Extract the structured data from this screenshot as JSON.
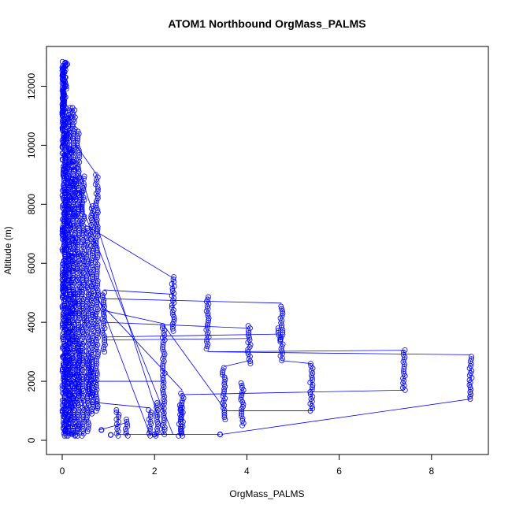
{
  "chart_data": {
    "type": "scatter",
    "title": "ATOM1 Northbound OrgMass_PALMS",
    "xlabel": "OrgMass_PALMS",
    "ylabel": "Altitude (m)",
    "xlim": [
      0,
      9
    ],
    "ylim": [
      0,
      12900
    ],
    "x_ticks": [
      "0",
      "2",
      "4",
      "6",
      "8"
    ],
    "y_ticks": [
      "0",
      "2000",
      "4000",
      "6000",
      "8000",
      "10000",
      "12000"
    ],
    "marker": "open-circle",
    "connected": true,
    "color": "#0000ff",
    "grid": false,
    "dense_cluster": {
      "x_range": [
        0,
        0.45
      ],
      "y_range": [
        150,
        12850
      ]
    },
    "vertical_profiles": [
      {
        "x": 0.05,
        "y_min": 150,
        "y_max": 12850
      },
      {
        "x": 0.15,
        "y_min": 150,
        "y_max": 11300
      },
      {
        "x": 0.25,
        "y_min": 150,
        "y_max": 11300
      },
      {
        "x": 0.35,
        "y_min": 150,
        "y_max": 10500
      },
      {
        "x": 0.45,
        "y_min": 150,
        "y_max": 9000
      },
      {
        "x": 0.55,
        "y_min": 300,
        "y_max": 7200
      },
      {
        "x": 0.65,
        "y_min": 900,
        "y_max": 8000
      },
      {
        "x": 0.75,
        "y_min": 1000,
        "y_max": 9000
      },
      {
        "x": 0.9,
        "y_min": 3000,
        "y_max": 5000
      },
      {
        "x": 0.35,
        "y_min": 1500,
        "y_max": 3300
      },
      {
        "x": 0.6,
        "y_min": 1500,
        "y_max": 2800
      },
      {
        "x": 1.2,
        "y_min": 150,
        "y_max": 1050
      },
      {
        "x": 1.4,
        "y_min": 150,
        "y_max": 750
      },
      {
        "x": 1.9,
        "y_min": 150,
        "y_max": 1100
      },
      {
        "x": 2.05,
        "y_min": 150,
        "y_max": 1300
      },
      {
        "x": 2.2,
        "y_min": 200,
        "y_max": 3900
      },
      {
        "x": 2.4,
        "y_min": 3700,
        "y_max": 5600
      },
      {
        "x": 2.55,
        "y_min": 150,
        "y_max": 1200
      },
      {
        "x": 2.6,
        "y_min": 150,
        "y_max": 1600
      },
      {
        "x": 3.15,
        "y_min": 3100,
        "y_max": 4900
      },
      {
        "x": 3.5,
        "y_min": 700,
        "y_max": 2500
      },
      {
        "x": 3.9,
        "y_min": 500,
        "y_max": 2000
      },
      {
        "x": 4.05,
        "y_min": 2600,
        "y_max": 3900
      },
      {
        "x": 4.7,
        "y_min": 3400,
        "y_max": 3800
      },
      {
        "x": 4.75,
        "y_min": 2700,
        "y_max": 4600
      },
      {
        "x": 5.4,
        "y_min": 1000,
        "y_max": 2600
      },
      {
        "x": 7.4,
        "y_min": 1700,
        "y_max": 3100
      },
      {
        "x": 8.85,
        "y_min": 1400,
        "y_max": 2900
      }
    ],
    "isolated_points": [
      {
        "x": 1.05,
        "y": 180
      },
      {
        "x": 2.0,
        "y": 200
      },
      {
        "x": 3.42,
        "y": 200
      },
      {
        "x": 0.85,
        "y": 350
      }
    ],
    "connector_segments": [
      [
        0.9,
        5100,
        2.4,
        4950
      ],
      [
        0.9,
        4800,
        4.75,
        4650
      ],
      [
        0.9,
        4400,
        2.2,
        3950
      ],
      [
        0.9,
        4000,
        4.05,
        3800
      ],
      [
        0.9,
        3500,
        4.7,
        3600
      ],
      [
        0.9,
        3400,
        4.05,
        3450
      ],
      [
        3.15,
        3000,
        7.4,
        3050
      ],
      [
        3.15,
        3000,
        8.85,
        2900
      ],
      [
        4.75,
        2700,
        5.4,
        2600
      ],
      [
        3.5,
        2500,
        4.05,
        2700
      ],
      [
        0.6,
        2000,
        2.2,
        2000
      ],
      [
        2.65,
        1550,
        7.4,
        1700
      ],
      [
        3.5,
        1000,
        5.4,
        1000
      ],
      [
        3.45,
        200,
        8.85,
        1400
      ],
      [
        0.4,
        9000,
        2.2,
        200
      ],
      [
        0.4,
        8000,
        2.4,
        200
      ],
      [
        0.5,
        7300,
        2.4,
        5500
      ],
      [
        0.45,
        6200,
        1.9,
        200
      ],
      [
        2.2,
        3900,
        3.5,
        1100
      ],
      [
        0.6,
        1300,
        1.9,
        1100
      ],
      [
        1.2,
        200,
        2.6,
        200
      ],
      [
        0.3,
        10000,
        0.75,
        9000
      ],
      [
        0.25,
        5600,
        2.6,
        1700
      ],
      [
        0.8,
        350,
        1.4,
        600
      ],
      [
        1.9,
        200,
        3.42,
        200
      ]
    ]
  }
}
